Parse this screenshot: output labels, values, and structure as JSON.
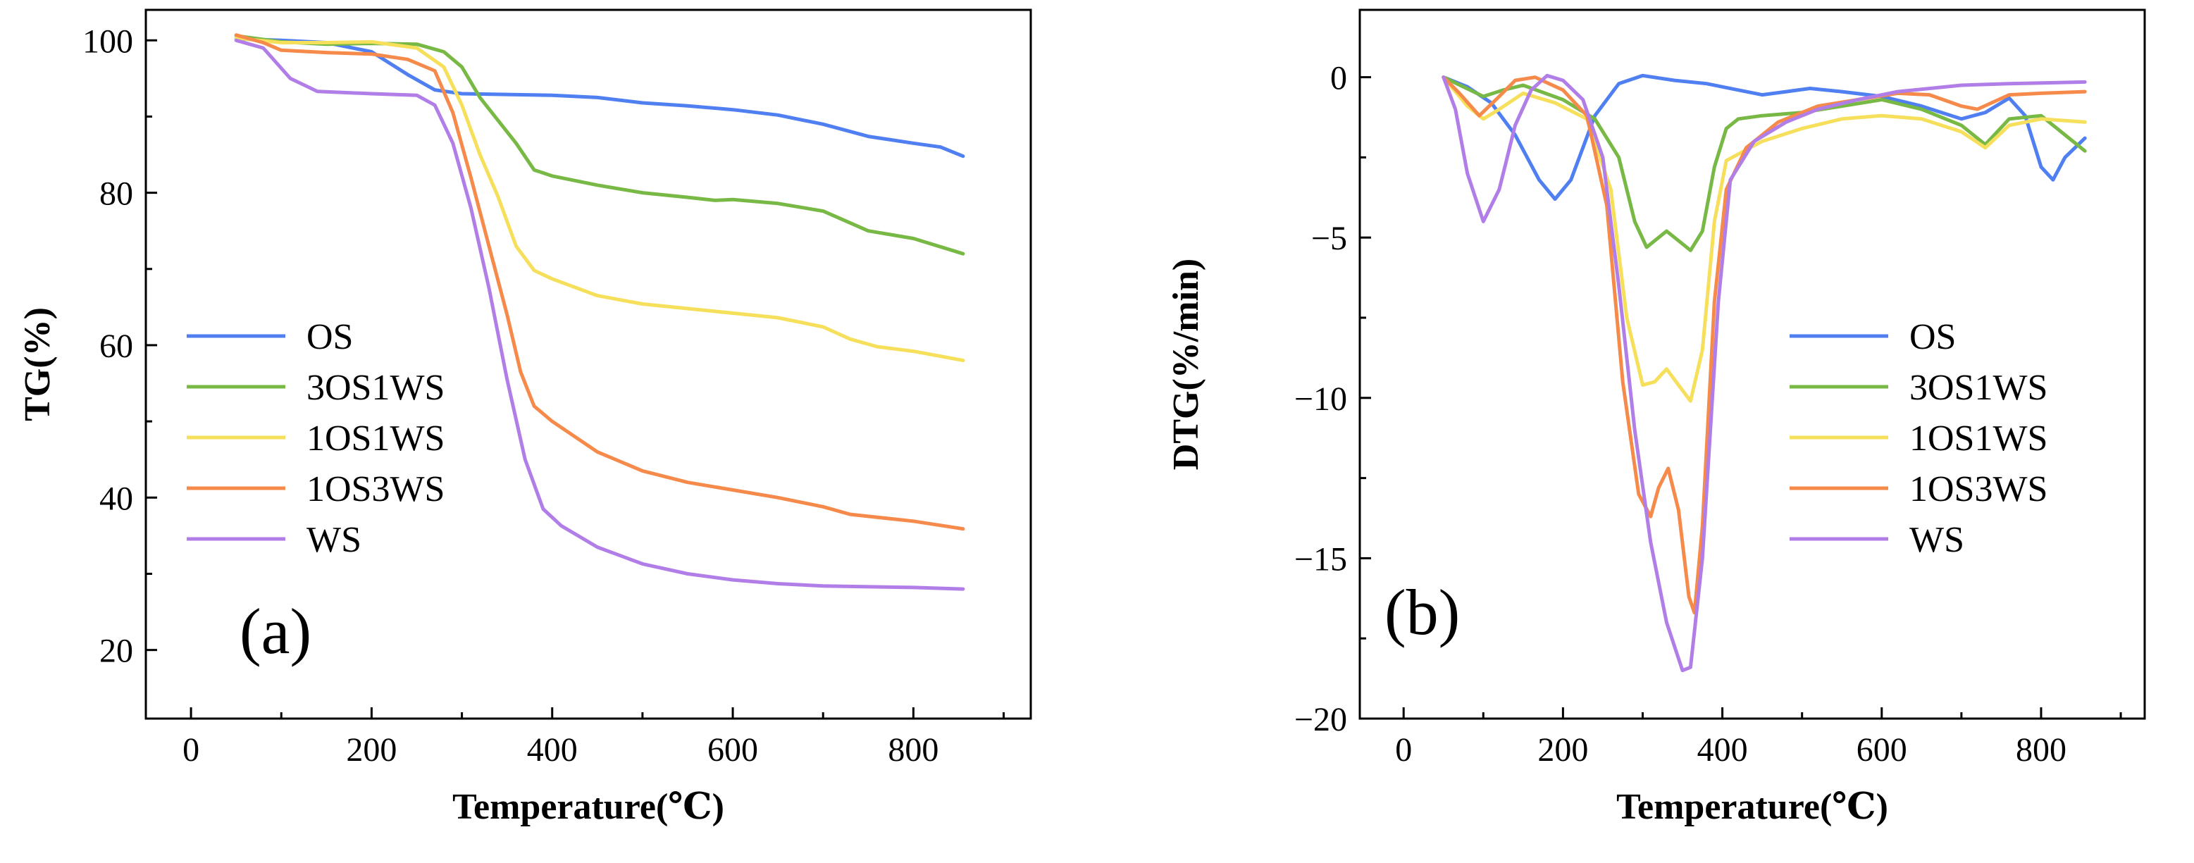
{
  "series_colors": {
    "OS": "#4f7ff0",
    "3OS1WS": "#78b845",
    "1OS1WS": "#f6df5a",
    "1OS3WS": "#f58a4a",
    "WS": "#b17ee8"
  },
  "chart_data": [
    {
      "type": "line",
      "panel_label": "(a)",
      "xlabel": "Temperature(℃)",
      "ylabel": "TG(%)",
      "xlim": [
        -50,
        930
      ],
      "ylim": [
        11,
        104
      ],
      "xticks": [
        0,
        200,
        400,
        600,
        800
      ],
      "yticks": [
        20,
        40,
        60,
        80,
        100
      ],
      "minor_xticks": [
        100,
        300,
        500,
        700,
        900
      ],
      "minor_yticks": [
        30,
        50,
        70,
        90
      ],
      "legend": {
        "position": "middle-left",
        "entries": [
          "OS",
          "3OS1WS",
          "1OS1WS",
          "1OS3WS",
          "WS"
        ]
      },
      "series": [
        {
          "name": "OS",
          "points": [
            [
              50,
              100.2
            ],
            [
              100,
              100.0
            ],
            [
              150,
              99.7
            ],
            [
              200,
              98.5
            ],
            [
              240,
              95.5
            ],
            [
              270,
              93.5
            ],
            [
              300,
              93.0
            ],
            [
              400,
              92.8
            ],
            [
              450,
              92.5
            ],
            [
              500,
              91.8
            ],
            [
              550,
              91.4
            ],
            [
              600,
              90.9
            ],
            [
              650,
              90.2
            ],
            [
              700,
              89.0
            ],
            [
              750,
              87.4
            ],
            [
              800,
              86.5
            ],
            [
              830,
              86.0
            ],
            [
              855,
              84.8
            ]
          ]
        },
        {
          "name": "3OS1WS",
          "points": [
            [
              50,
              100.6
            ],
            [
              100,
              99.8
            ],
            [
              150,
              99.5
            ],
            [
              200,
              99.6
            ],
            [
              250,
              99.5
            ],
            [
              280,
              98.5
            ],
            [
              300,
              96.5
            ],
            [
              320,
              92.5
            ],
            [
              340,
              89.5
            ],
            [
              360,
              86.5
            ],
            [
              380,
              83.0
            ],
            [
              400,
              82.2
            ],
            [
              450,
              81.0
            ],
            [
              500,
              80.0
            ],
            [
              550,
              79.4
            ],
            [
              580,
              79.0
            ],
            [
              600,
              79.1
            ],
            [
              650,
              78.6
            ],
            [
              700,
              77.6
            ],
            [
              750,
              75.0
            ],
            [
              800,
              74.0
            ],
            [
              855,
              72.0
            ]
          ]
        },
        {
          "name": "1OS1WS",
          "points": [
            [
              50,
              100.3
            ],
            [
              100,
              99.7
            ],
            [
              150,
              99.7
            ],
            [
              200,
              99.8
            ],
            [
              250,
              99.0
            ],
            [
              280,
              96.5
            ],
            [
              300,
              91.5
            ],
            [
              320,
              85.0
            ],
            [
              340,
              79.5
            ],
            [
              360,
              73.0
            ],
            [
              380,
              69.8
            ],
            [
              400,
              68.7
            ],
            [
              450,
              66.5
            ],
            [
              500,
              65.4
            ],
            [
              550,
              64.8
            ],
            [
              600,
              64.2
            ],
            [
              650,
              63.6
            ],
            [
              700,
              62.4
            ],
            [
              730,
              60.8
            ],
            [
              760,
              59.8
            ],
            [
              800,
              59.2
            ],
            [
              855,
              58.0
            ]
          ]
        },
        {
          "name": "1OS3WS",
          "points": [
            [
              50,
              100.7
            ],
            [
              80,
              99.7
            ],
            [
              100,
              98.7
            ],
            [
              150,
              98.4
            ],
            [
              200,
              98.2
            ],
            [
              240,
              97.5
            ],
            [
              270,
              96.0
            ],
            [
              290,
              90.5
            ],
            [
              310,
              82.0
            ],
            [
              330,
              73.0
            ],
            [
              350,
              64.0
            ],
            [
              365,
              56.5
            ],
            [
              380,
              52.0
            ],
            [
              400,
              50.0
            ],
            [
              450,
              46.0
            ],
            [
              500,
              43.5
            ],
            [
              550,
              42.0
            ],
            [
              600,
              41.0
            ],
            [
              650,
              40.0
            ],
            [
              700,
              38.8
            ],
            [
              730,
              37.8
            ],
            [
              800,
              36.9
            ],
            [
              855,
              35.9
            ]
          ]
        },
        {
          "name": "WS",
          "points": [
            [
              50,
              100.0
            ],
            [
              80,
              99.0
            ],
            [
              110,
              95.0
            ],
            [
              140,
              93.3
            ],
            [
              200,
              93.0
            ],
            [
              250,
              92.8
            ],
            [
              270,
              91.5
            ],
            [
              290,
              86.5
            ],
            [
              310,
              78.0
            ],
            [
              330,
              67.5
            ],
            [
              350,
              55.5
            ],
            [
              370,
              45.0
            ],
            [
              390,
              38.5
            ],
            [
              410,
              36.3
            ],
            [
              450,
              33.5
            ],
            [
              500,
              31.3
            ],
            [
              550,
              30.0
            ],
            [
              600,
              29.2
            ],
            [
              650,
              28.7
            ],
            [
              700,
              28.4
            ],
            [
              800,
              28.2
            ],
            [
              855,
              28.0
            ]
          ]
        }
      ]
    },
    {
      "type": "line",
      "panel_label": "(b)",
      "xlabel": "Temperature(℃)",
      "ylabel": "DTG(%/min)",
      "xlim": [
        -55,
        930
      ],
      "ylim": [
        -20,
        2.1
      ],
      "xticks": [
        0,
        200,
        400,
        600,
        800
      ],
      "yticks": [
        0,
        -5,
        -10,
        -15,
        -20
      ],
      "minor_xticks": [
        100,
        300,
        500,
        700,
        900
      ],
      "minor_yticks": [
        -2.5,
        -7.5,
        -12.5,
        -17.5
      ],
      "legend": {
        "position": "middle-right",
        "entries": [
          "OS",
          "3OS1WS",
          "1OS1WS",
          "1OS3WS",
          "WS"
        ]
      },
      "series": [
        {
          "name": "OS",
          "points": [
            [
              50,
              0
            ],
            [
              80,
              -0.3
            ],
            [
              110,
              -0.8
            ],
            [
              140,
              -1.8
            ],
            [
              170,
              -3.2
            ],
            [
              190,
              -3.8
            ],
            [
              210,
              -3.2
            ],
            [
              240,
              -1.2
            ],
            [
              270,
              -0.2
            ],
            [
              300,
              0.05
            ],
            [
              340,
              -0.1
            ],
            [
              380,
              -0.2
            ],
            [
              420,
              -0.4
            ],
            [
              450,
              -0.55
            ],
            [
              480,
              -0.45
            ],
            [
              510,
              -0.35
            ],
            [
              550,
              -0.45
            ],
            [
              600,
              -0.6
            ],
            [
              650,
              -0.9
            ],
            [
              700,
              -1.3
            ],
            [
              730,
              -1.1
            ],
            [
              760,
              -0.65
            ],
            [
              780,
              -1.2
            ],
            [
              800,
              -2.8
            ],
            [
              815,
              -3.2
            ],
            [
              830,
              -2.5
            ],
            [
              855,
              -1.9
            ]
          ]
        },
        {
          "name": "3OS1WS",
          "points": [
            [
              50,
              0
            ],
            [
              75,
              -0.3
            ],
            [
              100,
              -0.6
            ],
            [
              125,
              -0.4
            ],
            [
              150,
              -0.25
            ],
            [
              200,
              -0.7
            ],
            [
              240,
              -1.3
            ],
            [
              270,
              -2.5
            ],
            [
              290,
              -4.5
            ],
            [
              305,
              -5.3
            ],
            [
              320,
              -5.0
            ],
            [
              330,
              -4.8
            ],
            [
              345,
              -5.1
            ],
            [
              360,
              -5.4
            ],
            [
              375,
              -4.8
            ],
            [
              390,
              -2.8
            ],
            [
              405,
              -1.6
            ],
            [
              420,
              -1.3
            ],
            [
              450,
              -1.2
            ],
            [
              500,
              -1.1
            ],
            [
              550,
              -0.9
            ],
            [
              600,
              -0.7
            ],
            [
              650,
              -1.0
            ],
            [
              700,
              -1.5
            ],
            [
              730,
              -2.1
            ],
            [
              760,
              -1.3
            ],
            [
              800,
              -1.2
            ],
            [
              830,
              -1.8
            ],
            [
              855,
              -2.3
            ]
          ]
        },
        {
          "name": "1OS1WS",
          "points": [
            [
              50,
              0
            ],
            [
              80,
              -0.9
            ],
            [
              100,
              -1.3
            ],
            [
              120,
              -1.0
            ],
            [
              150,
              -0.5
            ],
            [
              190,
              -0.8
            ],
            [
              230,
              -1.3
            ],
            [
              260,
              -3.5
            ],
            [
              280,
              -7.5
            ],
            [
              300,
              -9.6
            ],
            [
              315,
              -9.5
            ],
            [
              330,
              -9.1
            ],
            [
              345,
              -9.6
            ],
            [
              360,
              -10.1
            ],
            [
              375,
              -8.5
            ],
            [
              390,
              -4.5
            ],
            [
              405,
              -2.6
            ],
            [
              450,
              -2.0
            ],
            [
              500,
              -1.6
            ],
            [
              550,
              -1.3
            ],
            [
              600,
              -1.2
            ],
            [
              650,
              -1.3
            ],
            [
              700,
              -1.7
            ],
            [
              730,
              -2.2
            ],
            [
              760,
              -1.5
            ],
            [
              800,
              -1.3
            ],
            [
              855,
              -1.4
            ]
          ]
        },
        {
          "name": "1OS3WS",
          "points": [
            [
              50,
              0
            ],
            [
              70,
              -0.5
            ],
            [
              95,
              -1.2
            ],
            [
              120,
              -0.6
            ],
            [
              140,
              -0.1
            ],
            [
              165,
              0.0
            ],
            [
              200,
              -0.4
            ],
            [
              230,
              -1.2
            ],
            [
              255,
              -4.0
            ],
            [
              275,
              -9.5
            ],
            [
              295,
              -13.0
            ],
            [
              310,
              -13.7
            ],
            [
              320,
              -12.8
            ],
            [
              332,
              -12.2
            ],
            [
              345,
              -13.5
            ],
            [
              358,
              -16.2
            ],
            [
              365,
              -16.7
            ],
            [
              375,
              -14.0
            ],
            [
              390,
              -7.0
            ],
            [
              405,
              -3.5
            ],
            [
              430,
              -2.2
            ],
            [
              470,
              -1.4
            ],
            [
              520,
              -0.9
            ],
            [
              570,
              -0.7
            ],
            [
              620,
              -0.5
            ],
            [
              660,
              -0.55
            ],
            [
              700,
              -0.9
            ],
            [
              720,
              -1.0
            ],
            [
              760,
              -0.55
            ],
            [
              800,
              -0.5
            ],
            [
              855,
              -0.45
            ]
          ]
        },
        {
          "name": "WS",
          "points": [
            [
              50,
              0
            ],
            [
              65,
              -1.0
            ],
            [
              80,
              -3.0
            ],
            [
              100,
              -4.5
            ],
            [
              120,
              -3.5
            ],
            [
              140,
              -1.5
            ],
            [
              160,
              -0.4
            ],
            [
              180,
              0.05
            ],
            [
              200,
              -0.1
            ],
            [
              225,
              -0.7
            ],
            [
              250,
              -2.5
            ],
            [
              270,
              -6.5
            ],
            [
              290,
              -11.0
            ],
            [
              310,
              -14.5
            ],
            [
              330,
              -17.0
            ],
            [
              350,
              -18.5
            ],
            [
              360,
              -18.4
            ],
            [
              375,
              -15.0
            ],
            [
              395,
              -7.0
            ],
            [
              410,
              -3.2
            ],
            [
              440,
              -2.0
            ],
            [
              480,
              -1.4
            ],
            [
              520,
              -1.0
            ],
            [
              570,
              -0.7
            ],
            [
              620,
              -0.45
            ],
            [
              700,
              -0.25
            ],
            [
              760,
              -0.2
            ],
            [
              855,
              -0.15
            ]
          ]
        }
      ]
    }
  ]
}
